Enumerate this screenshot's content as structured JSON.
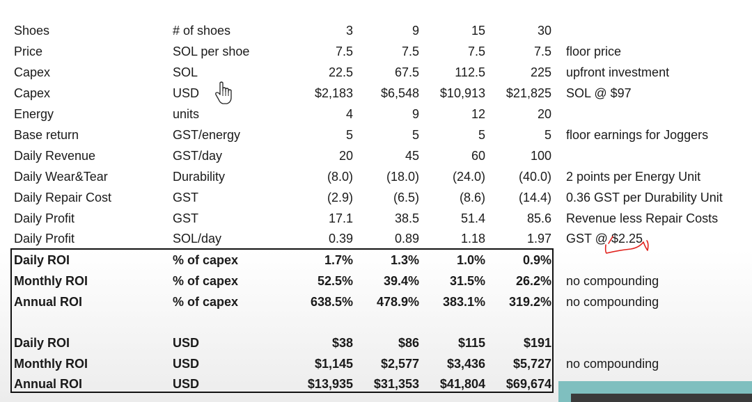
{
  "rows": [
    {
      "label": "Shoes",
      "unit": "# of shoes",
      "v1": "3",
      "v2": "9",
      "v3": "15",
      "v4": "30",
      "note": ""
    },
    {
      "label": "Price",
      "unit": "SOL per shoe",
      "v1": "7.5",
      "v2": "7.5",
      "v3": "7.5",
      "v4": "7.5",
      "note": "floor price"
    },
    {
      "label": "Capex",
      "unit": "SOL",
      "v1": "22.5",
      "v2": "67.5",
      "v3": "112.5",
      "v4": "225",
      "note": "upfront investment"
    },
    {
      "label": "Capex",
      "unit": "USD",
      "v1": "$2,183",
      "v2": "$6,548",
      "v3": "$10,913",
      "v4": "$21,825",
      "note": "SOL  @ $97"
    },
    {
      "label": "Energy",
      "unit": "units",
      "v1": "4",
      "v2": "9",
      "v3": "12",
      "v4": "20",
      "note": ""
    },
    {
      "label": "Base return",
      "unit": "GST/energy",
      "v1": "5",
      "v2": "5",
      "v3": "5",
      "v4": "5",
      "note": "floor earnings for Joggers"
    },
    {
      "label": "Daily Revenue",
      "unit": "GST/day",
      "v1": "20",
      "v2": "45",
      "v3": "60",
      "v4": "100",
      "note": ""
    },
    {
      "label": "Daily Wear&Tear",
      "unit": "Durability",
      "v1": "(8.0)",
      "v2": "(18.0)",
      "v3": "(24.0)",
      "v4": "(40.0)",
      "note": "2 points per Energy Unit"
    },
    {
      "label": "Daily Repair Cost",
      "unit": "GST",
      "v1": "(2.9)",
      "v2": "(6.5)",
      "v3": "(8.6)",
      "v4": "(14.4)",
      "note": "0.36 GST per Durability Unit"
    },
    {
      "label": "Daily Profit",
      "unit": "GST",
      "v1": "17.1",
      "v2": "38.5",
      "v3": "51.4",
      "v4": "85.6",
      "note": "Revenue less Repair Costs"
    },
    {
      "label": "Daily Profit",
      "unit": "SOL/day",
      "v1": "0.39",
      "v2": "0.89",
      "v3": "1.18",
      "v4": "1.97",
      "note": "GST @ $2.25"
    }
  ],
  "roi_pct": [
    {
      "label": "Daily ROI",
      "unit": "% of capex",
      "v1": "1.7%",
      "v2": "1.3%",
      "v3": "1.0%",
      "v4": "0.9%",
      "note": ""
    },
    {
      "label": "Monthly ROI",
      "unit": "% of capex",
      "v1": "52.5%",
      "v2": "39.4%",
      "v3": "31.5%",
      "v4": "26.2%",
      "note": "no compounding"
    },
    {
      "label": "Annual ROI",
      "unit": "% of capex",
      "v1": "638.5%",
      "v2": "478.9%",
      "v3": "383.1%",
      "v4": "319.2%",
      "note": "no compounding"
    }
  ],
  "roi_usd": [
    {
      "label": "Daily ROI",
      "unit": "USD",
      "v1": "$38",
      "v2": "$86",
      "v3": "$115",
      "v4": "$191",
      "note": ""
    },
    {
      "label": "Monthly ROI",
      "unit": "USD",
      "v1": "$1,145",
      "v2": "$2,577",
      "v3": "$3,436",
      "v4": "$5,727",
      "note": "no compounding"
    },
    {
      "label": "Annual ROI",
      "unit": "USD",
      "v1": "$13,935",
      "v2": "$31,353",
      "v3": "$41,804",
      "v4": "$69,674",
      "note": ""
    }
  ],
  "colors": {
    "annotation": "#e0201b",
    "text": "#1a1a1a",
    "border": "#111111"
  },
  "icons": {
    "cursor": "hand-pointer-icon",
    "annotation": "red-scribble-icon"
  }
}
